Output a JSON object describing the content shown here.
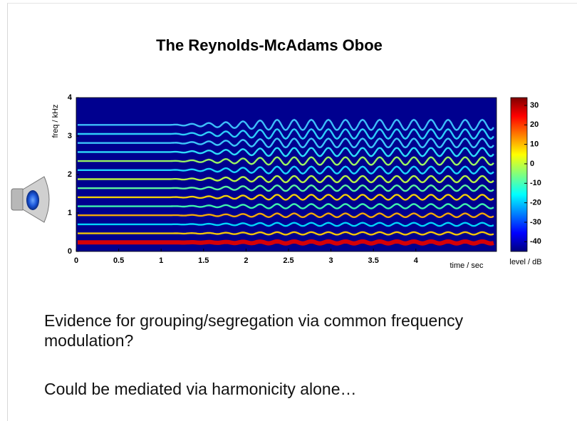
{
  "chart_data": {
    "type": "spectrogram",
    "title": "The Reynolds-McAdams Oboe",
    "xlabel": "time / sec",
    "ylabel": "freq / kHz",
    "xlim": [
      0,
      4.95
    ],
    "ylim": [
      0,
      4
    ],
    "xticks": [
      0,
      0.5,
      1,
      1.5,
      2,
      2.5,
      3,
      3.5,
      4
    ],
    "yticks": [
      0,
      1,
      2,
      3,
      4
    ],
    "colorbar": {
      "label": "level / dB",
      "lim": [
        -45,
        34
      ],
      "ticks": [
        30,
        20,
        10,
        0,
        -10,
        -20,
        -30,
        -40
      ]
    }
  },
  "body": [
    "Evidence for grouping/segregation via common frequency modulation?",
    "Could be mediated via harmonicity alone…"
  ]
}
